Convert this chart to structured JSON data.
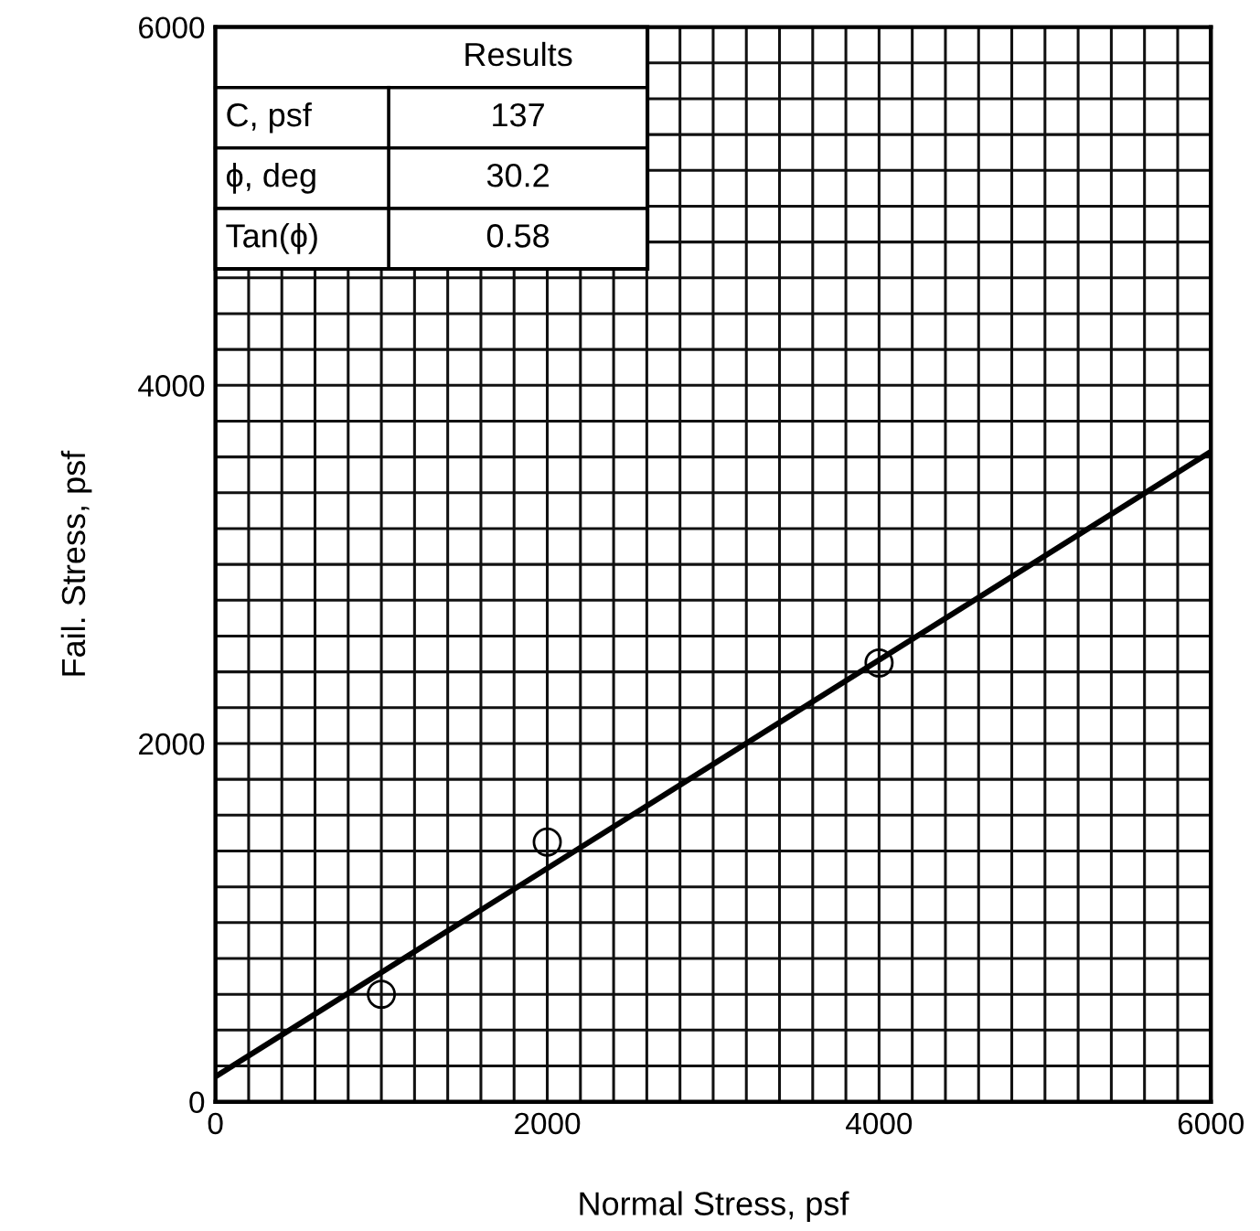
{
  "chart_data": {
    "type": "scatter",
    "xlabel": "Normal Stress, psf",
    "ylabel": "Fail. Stress, psf",
    "x": [
      1000,
      2000,
      4000
    ],
    "series": [
      {
        "color": "#000000",
        "marker": "circle",
        "values": [
          600,
          1450,
          2450
        ]
      },
      {
        "type": "line",
        "color": "#000000",
        "x": [
          0,
          6000
        ],
        "values": [
          140,
          3630
        ],
        "line_style": "solid",
        "marker": "none"
      }
    ],
    "xlim": [
      0,
      6000
    ],
    "ylim": [
      0,
      6000
    ],
    "xticks": [
      0,
      {
        "value": 200,
        "label": null
      },
      {
        "value": 400,
        "label": null
      },
      {
        "value": 600,
        "label": null
      },
      {
        "value": 800,
        "label": null
      },
      {
        "value": 1000,
        "label": null
      },
      {
        "value": 1200,
        "label": null
      },
      {
        "value": 1400,
        "label": null
      },
      {
        "value": 1600,
        "label": null
      },
      {
        "value": 1800,
        "label": null
      },
      2000,
      {
        "value": 2200,
        "label": null
      },
      {
        "value": 2400,
        "label": null
      },
      {
        "value": 2600,
        "label": null
      },
      {
        "value": 2800,
        "label": null
      },
      {
        "value": 3000,
        "label": null
      },
      {
        "value": 3200,
        "label": null
      },
      {
        "value": 3400,
        "label": null
      },
      {
        "value": 3600,
        "label": null
      },
      {
        "value": 3800,
        "label": null
      },
      4000,
      {
        "value": 4200,
        "label": null
      },
      {
        "value": 4400,
        "label": null
      },
      {
        "value": 4600,
        "label": null
      },
      {
        "value": 4800,
        "label": null
      },
      {
        "value": 5000,
        "label": null
      },
      {
        "value": 5200,
        "label": null
      },
      {
        "value": 5400,
        "label": null
      },
      {
        "value": 5600,
        "label": null
      },
      {
        "value": 5800,
        "label": null
      },
      6000
    ],
    "yticks": [
      0,
      {
        "value": 200,
        "label": null
      },
      {
        "value": 400,
        "label": null
      },
      {
        "value": 600,
        "label": null
      },
      {
        "value": 800,
        "label": null
      },
      {
        "value": 1000,
        "label": null
      },
      {
        "value": 1200,
        "label": null
      },
      {
        "value": 1400,
        "label": null
      },
      {
        "value": 1600,
        "label": null
      },
      {
        "value": 1800,
        "label": null
      },
      2000,
      {
        "value": 2200,
        "label": null
      },
      {
        "value": 2400,
        "label": null
      },
      {
        "value": 2600,
        "label": null
      },
      {
        "value": 2800,
        "label": null
      },
      {
        "value": 3000,
        "label": null
      },
      {
        "value": 3200,
        "label": null
      },
      {
        "value": 3400,
        "label": null
      },
      {
        "value": 3600,
        "label": null
      },
      {
        "value": 3800,
        "label": null
      },
      4000,
      {
        "value": 4200,
        "label": null
      },
      {
        "value": 4400,
        "label": null
      },
      {
        "value": 4600,
        "label": null
      },
      {
        "value": 4800,
        "label": null
      },
      {
        "value": 5000,
        "label": null
      },
      {
        "value": 5200,
        "label": null
      },
      {
        "value": 5400,
        "label": null
      },
      {
        "value": 5600,
        "label": null
      },
      {
        "value": 5800,
        "label": null
      },
      6000
    ],
    "grid": true,
    "annotations": [
      "Results",
      "C, psf",
      "137",
      "ϕ, deg",
      "30.2",
      "Tan(ϕ)",
      "0.58"
    ]
  }
}
